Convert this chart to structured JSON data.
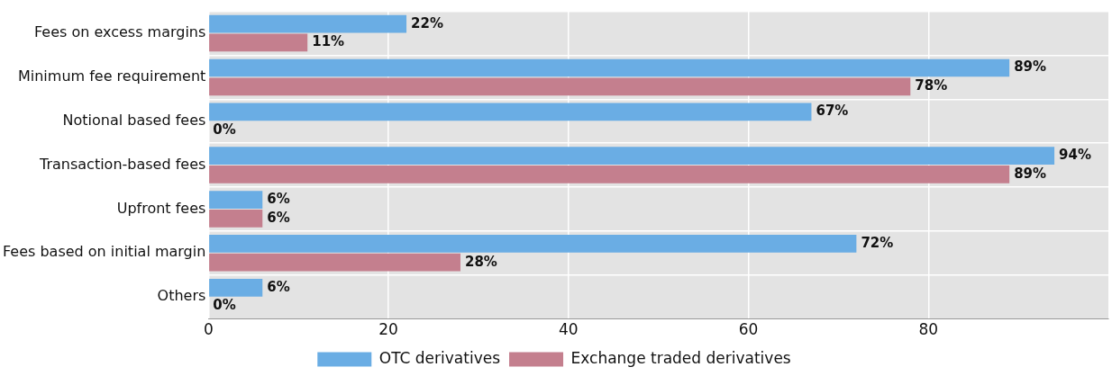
{
  "chart_data": {
    "type": "bar",
    "orientation": "horizontal",
    "categories": [
      "Fees on excess margins",
      "Minimum fee requirement",
      "Notional based fees",
      "Transaction-based fees",
      "Upfront fees",
      "Fees based on initial margin",
      "Others"
    ],
    "series": [
      {
        "name": "OTC derivatives",
        "color": "#6aade4",
        "values": [
          22,
          89,
          67,
          94,
          6,
          72,
          6
        ],
        "value_labels": [
          "22%",
          "89%",
          "67%",
          "94%",
          "6%",
          "72%",
          "6%"
        ]
      },
      {
        "name": "Exchange traded derivatives",
        "color": "#c47f8e",
        "values": [
          11,
          78,
          0,
          89,
          6,
          28,
          0
        ],
        "value_labels": [
          "11%",
          "78%",
          "0%",
          "89%",
          "6%",
          "28%",
          "0%"
        ]
      }
    ],
    "xlim": [
      0,
      100
    ],
    "xticks": [
      0,
      20,
      40,
      60,
      80
    ],
    "grid": true,
    "legend": "bottom"
  }
}
